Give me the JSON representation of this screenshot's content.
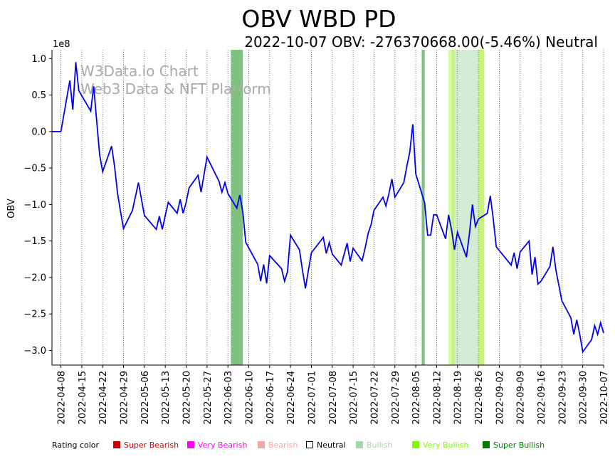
{
  "chart_data": {
    "type": "line",
    "title": "OBV WBD PD",
    "subtitle": "2022-10-07 OBV: -276370668.00(-5.46%) Neutral",
    "ylabel": "OBV",
    "y_multiplier_label": "1e8",
    "ylim": [
      -3.2,
      1.12
    ],
    "y_ticks": [
      1.0,
      0.5,
      0.0,
      -0.5,
      -1.0,
      -1.5,
      -2.0,
      -2.5,
      -3.0
    ],
    "y_tick_labels": [
      "1.0",
      "0.5",
      "0.0",
      "−0.5",
      "−1.0",
      "−1.5",
      "−2.0",
      "−2.5",
      "−3.0"
    ],
    "x_range": [
      "2022-04-05",
      "2022-10-07"
    ],
    "x_ticks": [
      "2022-04-08",
      "2022-04-15",
      "2022-04-22",
      "2022-04-29",
      "2022-05-06",
      "2022-05-13",
      "2022-05-20",
      "2022-05-27",
      "2022-06-03",
      "2022-06-10",
      "2022-06-17",
      "2022-06-24",
      "2022-07-01",
      "2022-07-08",
      "2022-07-15",
      "2022-07-22",
      "2022-07-29",
      "2022-08-05",
      "2022-08-12",
      "2022-08-19",
      "2022-08-26",
      "2022-09-02",
      "2022-09-09",
      "2022-09-16",
      "2022-09-23",
      "2022-09-30",
      "2022-10-07"
    ],
    "grid": "vertical dotted",
    "series": [
      {
        "color": "#0000ee",
        "points": [
          [
            "2022-04-05",
            0.0
          ],
          [
            "2022-04-06",
            0.0
          ],
          [
            "2022-04-07",
            0.0
          ],
          [
            "2022-04-08",
            0.0
          ],
          [
            "2022-04-11",
            0.7
          ],
          [
            "2022-04-12",
            0.3
          ],
          [
            "2022-04-13",
            0.95
          ],
          [
            "2022-04-14",
            0.56
          ],
          [
            "2022-04-18",
            0.28
          ],
          [
            "2022-04-19",
            0.62
          ],
          [
            "2022-04-20",
            0.15
          ],
          [
            "2022-04-21",
            -0.32
          ],
          [
            "2022-04-22",
            -0.55
          ],
          [
            "2022-04-25",
            -0.2
          ],
          [
            "2022-04-26",
            -0.48
          ],
          [
            "2022-04-27",
            -0.85
          ],
          [
            "2022-04-28",
            -1.1
          ],
          [
            "2022-04-29",
            -1.33
          ],
          [
            "2022-05-02",
            -1.08
          ],
          [
            "2022-05-04",
            -0.7
          ],
          [
            "2022-05-06",
            -1.15
          ],
          [
            "2022-05-10",
            -1.34
          ],
          [
            "2022-05-11",
            -1.16
          ],
          [
            "2022-05-12",
            -1.34
          ],
          [
            "2022-05-13",
            -1.15
          ],
          [
            "2022-05-14",
            -0.97
          ],
          [
            "2022-05-17",
            -1.12
          ],
          [
            "2022-05-18",
            -0.93
          ],
          [
            "2022-05-19",
            -1.12
          ],
          [
            "2022-05-20",
            -0.97
          ],
          [
            "2022-05-21",
            -0.77
          ],
          [
            "2022-05-24",
            -0.6
          ],
          [
            "2022-05-25",
            -0.83
          ],
          [
            "2022-05-27",
            -0.35
          ],
          [
            "2022-05-31",
            -0.68
          ],
          [
            "2022-06-01",
            -0.83
          ],
          [
            "2022-06-02",
            -0.7
          ],
          [
            "2022-06-03",
            -0.85
          ],
          [
            "2022-06-06",
            -1.05
          ],
          [
            "2022-06-07",
            -0.87
          ],
          [
            "2022-06-08",
            -1.1
          ],
          [
            "2022-06-09",
            -1.52
          ],
          [
            "2022-06-13",
            -1.82
          ],
          [
            "2022-06-14",
            -2.05
          ],
          [
            "2022-06-15",
            -1.82
          ],
          [
            "2022-06-16",
            -2.08
          ],
          [
            "2022-06-17",
            -1.7
          ],
          [
            "2022-06-21",
            -1.88
          ],
          [
            "2022-06-22",
            -2.05
          ],
          [
            "2022-06-23",
            -1.92
          ],
          [
            "2022-06-24",
            -1.42
          ],
          [
            "2022-06-27",
            -1.62
          ],
          [
            "2022-06-28",
            -1.9
          ],
          [
            "2022-06-29",
            -2.15
          ],
          [
            "2022-06-30",
            -1.9
          ],
          [
            "2022-07-01",
            -1.66
          ],
          [
            "2022-07-05",
            -1.45
          ],
          [
            "2022-07-06",
            -1.67
          ],
          [
            "2022-07-07",
            -1.52
          ],
          [
            "2022-07-08",
            -1.68
          ],
          [
            "2022-07-11",
            -1.83
          ],
          [
            "2022-07-12",
            -1.68
          ],
          [
            "2022-07-13",
            -1.53
          ],
          [
            "2022-07-14",
            -1.78
          ],
          [
            "2022-07-15",
            -1.6
          ],
          [
            "2022-07-18",
            -1.77
          ],
          [
            "2022-07-19",
            -1.6
          ],
          [
            "2022-07-20",
            -1.4
          ],
          [
            "2022-07-21",
            -1.28
          ],
          [
            "2022-07-22",
            -1.08
          ],
          [
            "2022-07-25",
            -0.9
          ],
          [
            "2022-07-26",
            -1.02
          ],
          [
            "2022-07-27",
            -0.85
          ],
          [
            "2022-07-28",
            -0.65
          ],
          [
            "2022-07-29",
            -0.9
          ],
          [
            "2022-08-01",
            -0.7
          ],
          [
            "2022-08-02",
            -0.48
          ],
          [
            "2022-08-03",
            -0.28
          ],
          [
            "2022-08-04",
            0.1
          ],
          [
            "2022-08-05",
            -0.58
          ],
          [
            "2022-08-08",
            -0.98
          ],
          [
            "2022-08-09",
            -1.42
          ],
          [
            "2022-08-10",
            -1.42
          ],
          [
            "2022-08-11",
            -1.14
          ],
          [
            "2022-08-12",
            -1.14
          ],
          [
            "2022-08-15",
            -1.47
          ],
          [
            "2022-08-16",
            -1.14
          ],
          [
            "2022-08-17",
            -1.35
          ],
          [
            "2022-08-18",
            -1.62
          ],
          [
            "2022-08-19",
            -1.38
          ],
          [
            "2022-08-22",
            -1.72
          ],
          [
            "2022-08-23",
            -1.4
          ],
          [
            "2022-08-24",
            -1.0
          ],
          [
            "2022-08-25",
            -1.3
          ],
          [
            "2022-08-26",
            -1.2
          ],
          [
            "2022-08-29",
            -1.12
          ],
          [
            "2022-08-30",
            -0.88
          ],
          [
            "2022-08-31",
            -1.2
          ],
          [
            "2022-09-01",
            -1.58
          ],
          [
            "2022-09-06",
            -1.83
          ],
          [
            "2022-09-07",
            -1.66
          ],
          [
            "2022-09-08",
            -1.88
          ],
          [
            "2022-09-09",
            -1.65
          ],
          [
            "2022-09-12",
            -1.5
          ],
          [
            "2022-09-13",
            -1.96
          ],
          [
            "2022-09-14",
            -1.72
          ],
          [
            "2022-09-15",
            -2.09
          ],
          [
            "2022-09-16",
            -2.05
          ],
          [
            "2022-09-19",
            -1.85
          ],
          [
            "2022-09-20",
            -1.58
          ],
          [
            "2022-09-21",
            -1.9
          ],
          [
            "2022-09-23",
            -2.32
          ],
          [
            "2022-09-26",
            -2.55
          ],
          [
            "2022-09-27",
            -2.78
          ],
          [
            "2022-09-28",
            -2.58
          ],
          [
            "2022-09-29",
            -2.78
          ],
          [
            "2022-09-30",
            -3.02
          ],
          [
            "2022-10-03",
            -2.85
          ],
          [
            "2022-10-04",
            -2.66
          ],
          [
            "2022-10-05",
            -2.78
          ],
          [
            "2022-10-06",
            -2.62
          ],
          [
            "2022-10-07",
            -2.76
          ]
        ]
      }
    ],
    "bands": [
      {
        "start": "2022-06-04",
        "end": "2022-06-08",
        "rating": "Super Bullish",
        "color": "#80c080"
      },
      {
        "start": "2022-08-07",
        "end": "2022-08-08",
        "rating": "Super Bullish",
        "color": "#80c080"
      },
      {
        "start": "2022-08-16",
        "end": "2022-08-17",
        "rating": "Very Bullish",
        "color": "#d4fca0"
      },
      {
        "start": "2022-08-17",
        "end": "2022-08-18",
        "rating": "Very Bullish",
        "color": "#c3f27e"
      },
      {
        "start": "2022-08-18",
        "end": "2022-08-26",
        "rating": "Bullish",
        "color": "#d4ebd4"
      },
      {
        "start": "2022-08-26",
        "end": "2022-08-28",
        "rating": "Very Bullish",
        "color": "#c3f27e"
      }
    ],
    "watermark": [
      "W3Data.io Chart",
      "Web3 Data & NFT Platform"
    ],
    "legend": {
      "title": "Rating color",
      "placement": "bottom",
      "items": [
        {
          "label": "Super Bearish",
          "color": "#cc0000"
        },
        {
          "label": "Very Bearish",
          "color": "#ff00ff"
        },
        {
          "label": "Bearish",
          "color": "#f4a6a6"
        },
        {
          "label": "Neutral",
          "color": "#000000",
          "hollow": true
        },
        {
          "label": "Bullish",
          "color": "#a5d6a7"
        },
        {
          "label": "Very Bullish",
          "color": "#7cfc00"
        },
        {
          "label": "Super Bullish",
          "color": "#007a00"
        }
      ]
    }
  }
}
